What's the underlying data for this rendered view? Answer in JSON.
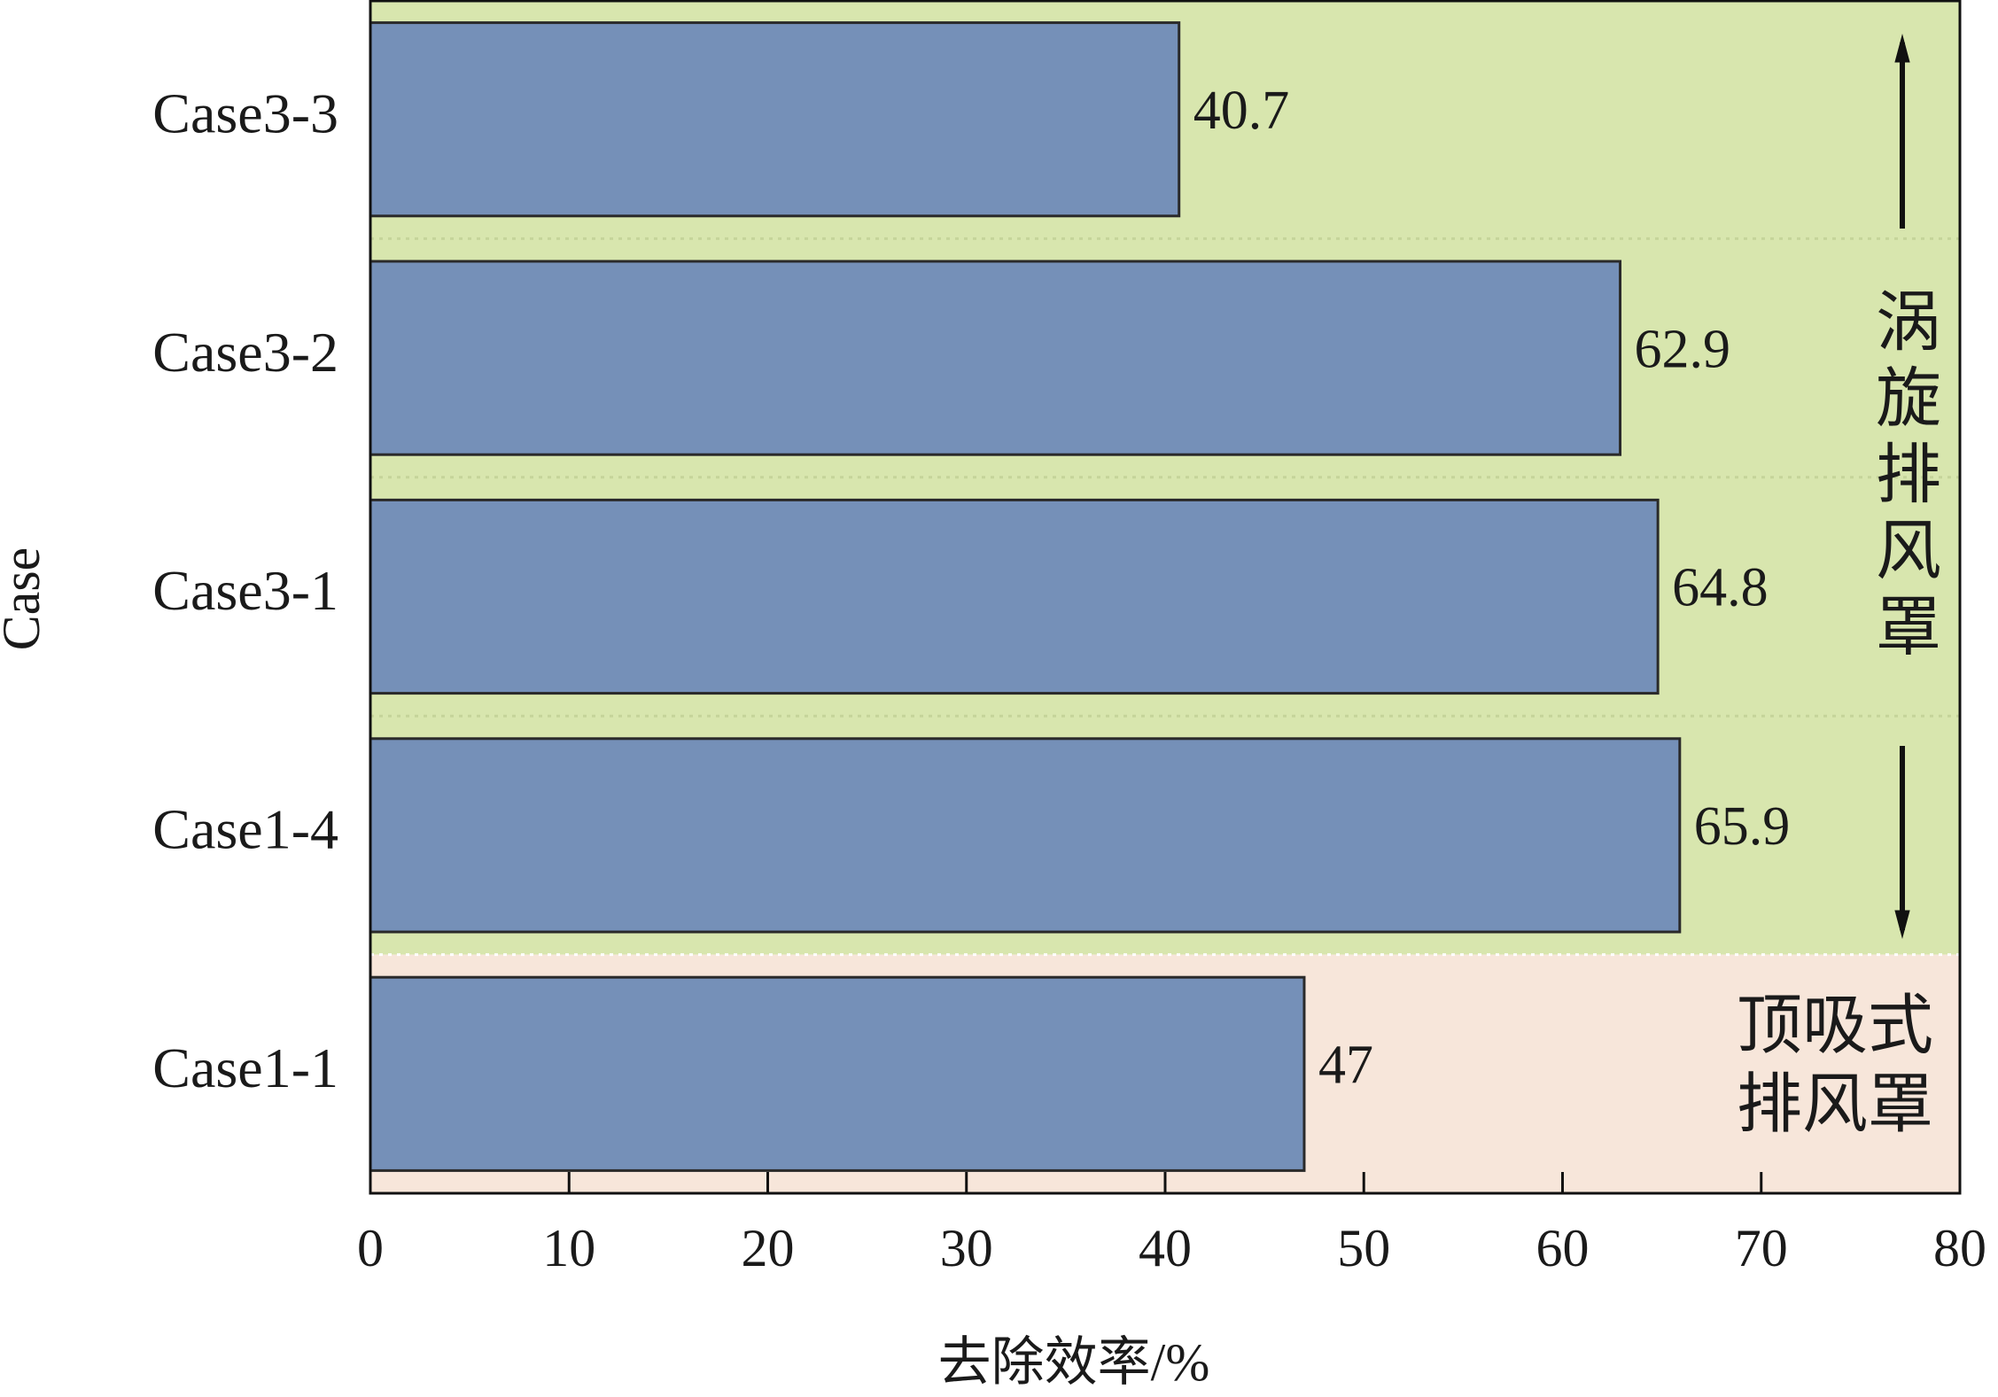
{
  "chart_data": {
    "type": "barh",
    "x_label": "去除效率/%",
    "y_label": "Case",
    "categories": [
      "Case3-3",
      "Case3-2",
      "Case3-1",
      "Case1-4",
      "Case1-1"
    ],
    "values": [
      40.7,
      62.9,
      64.8,
      65.9,
      47
    ],
    "color": "#7590b8",
    "xlim": [
      0,
      80
    ],
    "xticks": [
      0,
      10,
      20,
      30,
      40,
      50,
      60,
      70,
      80
    ],
    "annotations": [
      "涡旋排风罩",
      [
        "顶吸式",
        "排风罩"
      ]
    ]
  }
}
